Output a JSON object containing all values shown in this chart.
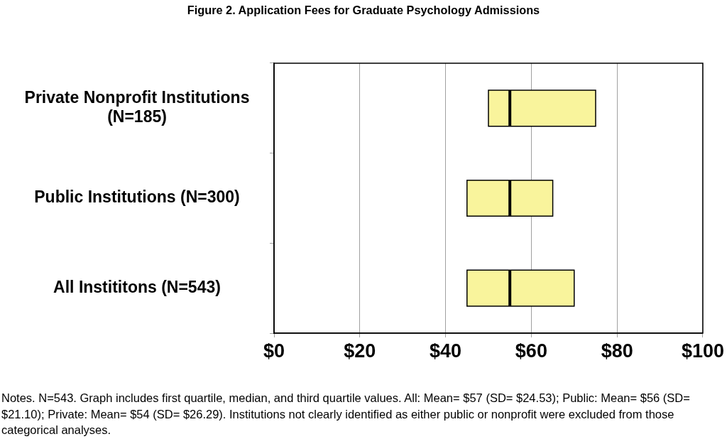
{
  "chart_data": {
    "type": "box",
    "orientation": "horizontal",
    "title": "Figure 2. Application Fees for Graduate Psychology Admissions",
    "categories": [
      "Private Nonprofit Institutions (N=185)",
      "Public Institutions (N=300)",
      "All Instititons (N=543)"
    ],
    "boxes": [
      {
        "low": 50,
        "q1": 50,
        "median": 55,
        "q3": 75,
        "high": 75
      },
      {
        "low": 45,
        "q1": 45,
        "median": 55,
        "q3": 65,
        "high": 65
      },
      {
        "low": 45,
        "q1": 45,
        "median": 55,
        "q3": 70,
        "high": 70
      }
    ],
    "color": "#f9f49c",
    "xlim": [
      0,
      100
    ],
    "xticks": [
      {
        "value": 0,
        "label": "$0"
      },
      {
        "value": 20,
        "label": "$20"
      },
      {
        "value": 40,
        "label": "$40"
      },
      {
        "value": 60,
        "label": "$60"
      },
      {
        "value": 80,
        "label": "$80"
      },
      {
        "value": 100,
        "label": "$100"
      }
    ],
    "grid": "x",
    "annotations": [
      "Notes. N=543. Graph includes first quartile, median, and third quartile values. All: Mean= $57 (SD= $24.53); Public: Mean= $56 (SD= $21.10); Private: Mean= $54 (SD= $26.29). Institutions not clearly identified as either public or nonprofit were excluded from those categorical analyses."
    ]
  }
}
